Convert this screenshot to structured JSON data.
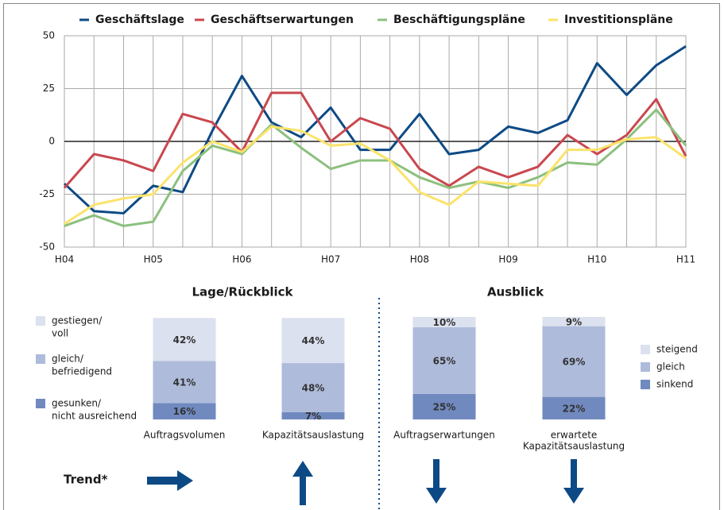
{
  "chart_data": [
    {
      "type": "line",
      "categories": [
        "H04",
        null,
        null,
        "H05",
        null,
        null,
        "H06",
        null,
        null,
        "H07",
        null,
        null,
        "H08",
        null,
        null,
        "H09",
        null,
        null,
        "H10",
        null,
        null,
        "H11"
      ],
      "ylim": [
        -50,
        50
      ],
      "yticks": [
        -50,
        -25,
        0,
        25,
        50
      ],
      "grid": true,
      "series": [
        {
          "name": "Geschäftslage",
          "color": "#0d4a85",
          "values": [
            -20,
            -33,
            -34,
            -21,
            -24,
            5,
            31,
            9,
            2,
            16,
            -4,
            -4,
            13,
            -6,
            -4,
            7,
            4,
            10,
            37,
            22,
            36,
            45
          ]
        },
        {
          "name": "Geschäftserwartungen",
          "color": "#c9474f",
          "values": [
            -22,
            -6,
            -9,
            -14,
            13,
            9,
            -5,
            23,
            23,
            0,
            11,
            6,
            -13,
            -21,
            -12,
            -17,
            -12,
            3,
            -6,
            3,
            20,
            -7
          ]
        },
        {
          "name": "Beschäftigungspläne",
          "color": "#8cc07e",
          "values": [
            -40,
            -35,
            -40,
            -38,
            -14,
            -2,
            -6,
            8,
            -3,
            -13,
            -9,
            -9,
            -17,
            -22,
            -19,
            -22,
            -17,
            -10,
            -11,
            1,
            15,
            -2
          ]
        },
        {
          "name": "Investitionspläne",
          "color": "#fbe36a",
          "values": [
            -39,
            -30,
            -27,
            -25,
            -10,
            0,
            -5,
            7,
            5,
            -2,
            -1,
            -9,
            -24,
            -30,
            -19,
            -20,
            -21,
            -4,
            -4,
            1,
            2,
            -8
          ]
        }
      ]
    },
    {
      "type": "stacked-bar",
      "title": "Lage/Rückblick",
      "legend": "left",
      "categories": [
        [
          "Auftragsvolumen"
        ],
        [
          "Kapazitätsauslastung"
        ]
      ],
      "series": [
        {
          "name": [
            "gesunken/",
            "nicht ausreichend"
          ],
          "color": "#7089bf",
          "values": [
            16,
            7
          ],
          "value_labels": [
            "16%",
            "7%"
          ]
        },
        {
          "name": [
            "gleich/",
            "befriedigend"
          ],
          "color": "#aebbdb",
          "values": [
            41,
            48
          ],
          "value_labels": [
            "41%",
            "48%"
          ]
        },
        {
          "name": [
            "gestiegen/",
            "voll"
          ],
          "color": "#dce1ef",
          "values": [
            42,
            44
          ],
          "value_labels": [
            "42%",
            "44%"
          ]
        }
      ]
    },
    {
      "type": "stacked-bar",
      "title": "Ausblick",
      "legend": "right",
      "categories": [
        [
          "Auftragserwartungen"
        ],
        [
          "erwartete",
          "Kapazitätsauslastung"
        ]
      ],
      "series": [
        {
          "name": [
            "sinkend"
          ],
          "color": "#7089bf",
          "values": [
            25,
            22
          ],
          "value_labels": [
            "25%",
            "22%"
          ]
        },
        {
          "name": [
            "gleich"
          ],
          "color": "#aebbdb",
          "values": [
            65,
            69
          ],
          "value_labels": [
            "65%",
            "69%"
          ]
        },
        {
          "name": [
            "steigend"
          ],
          "color": "#dce1ef",
          "values": [
            10,
            9
          ],
          "value_labels": [
            "10%",
            "9%"
          ]
        }
      ]
    }
  ],
  "trend": {
    "label": "Trend*",
    "arrows": [
      "right",
      "up",
      "down",
      "down"
    ]
  }
}
